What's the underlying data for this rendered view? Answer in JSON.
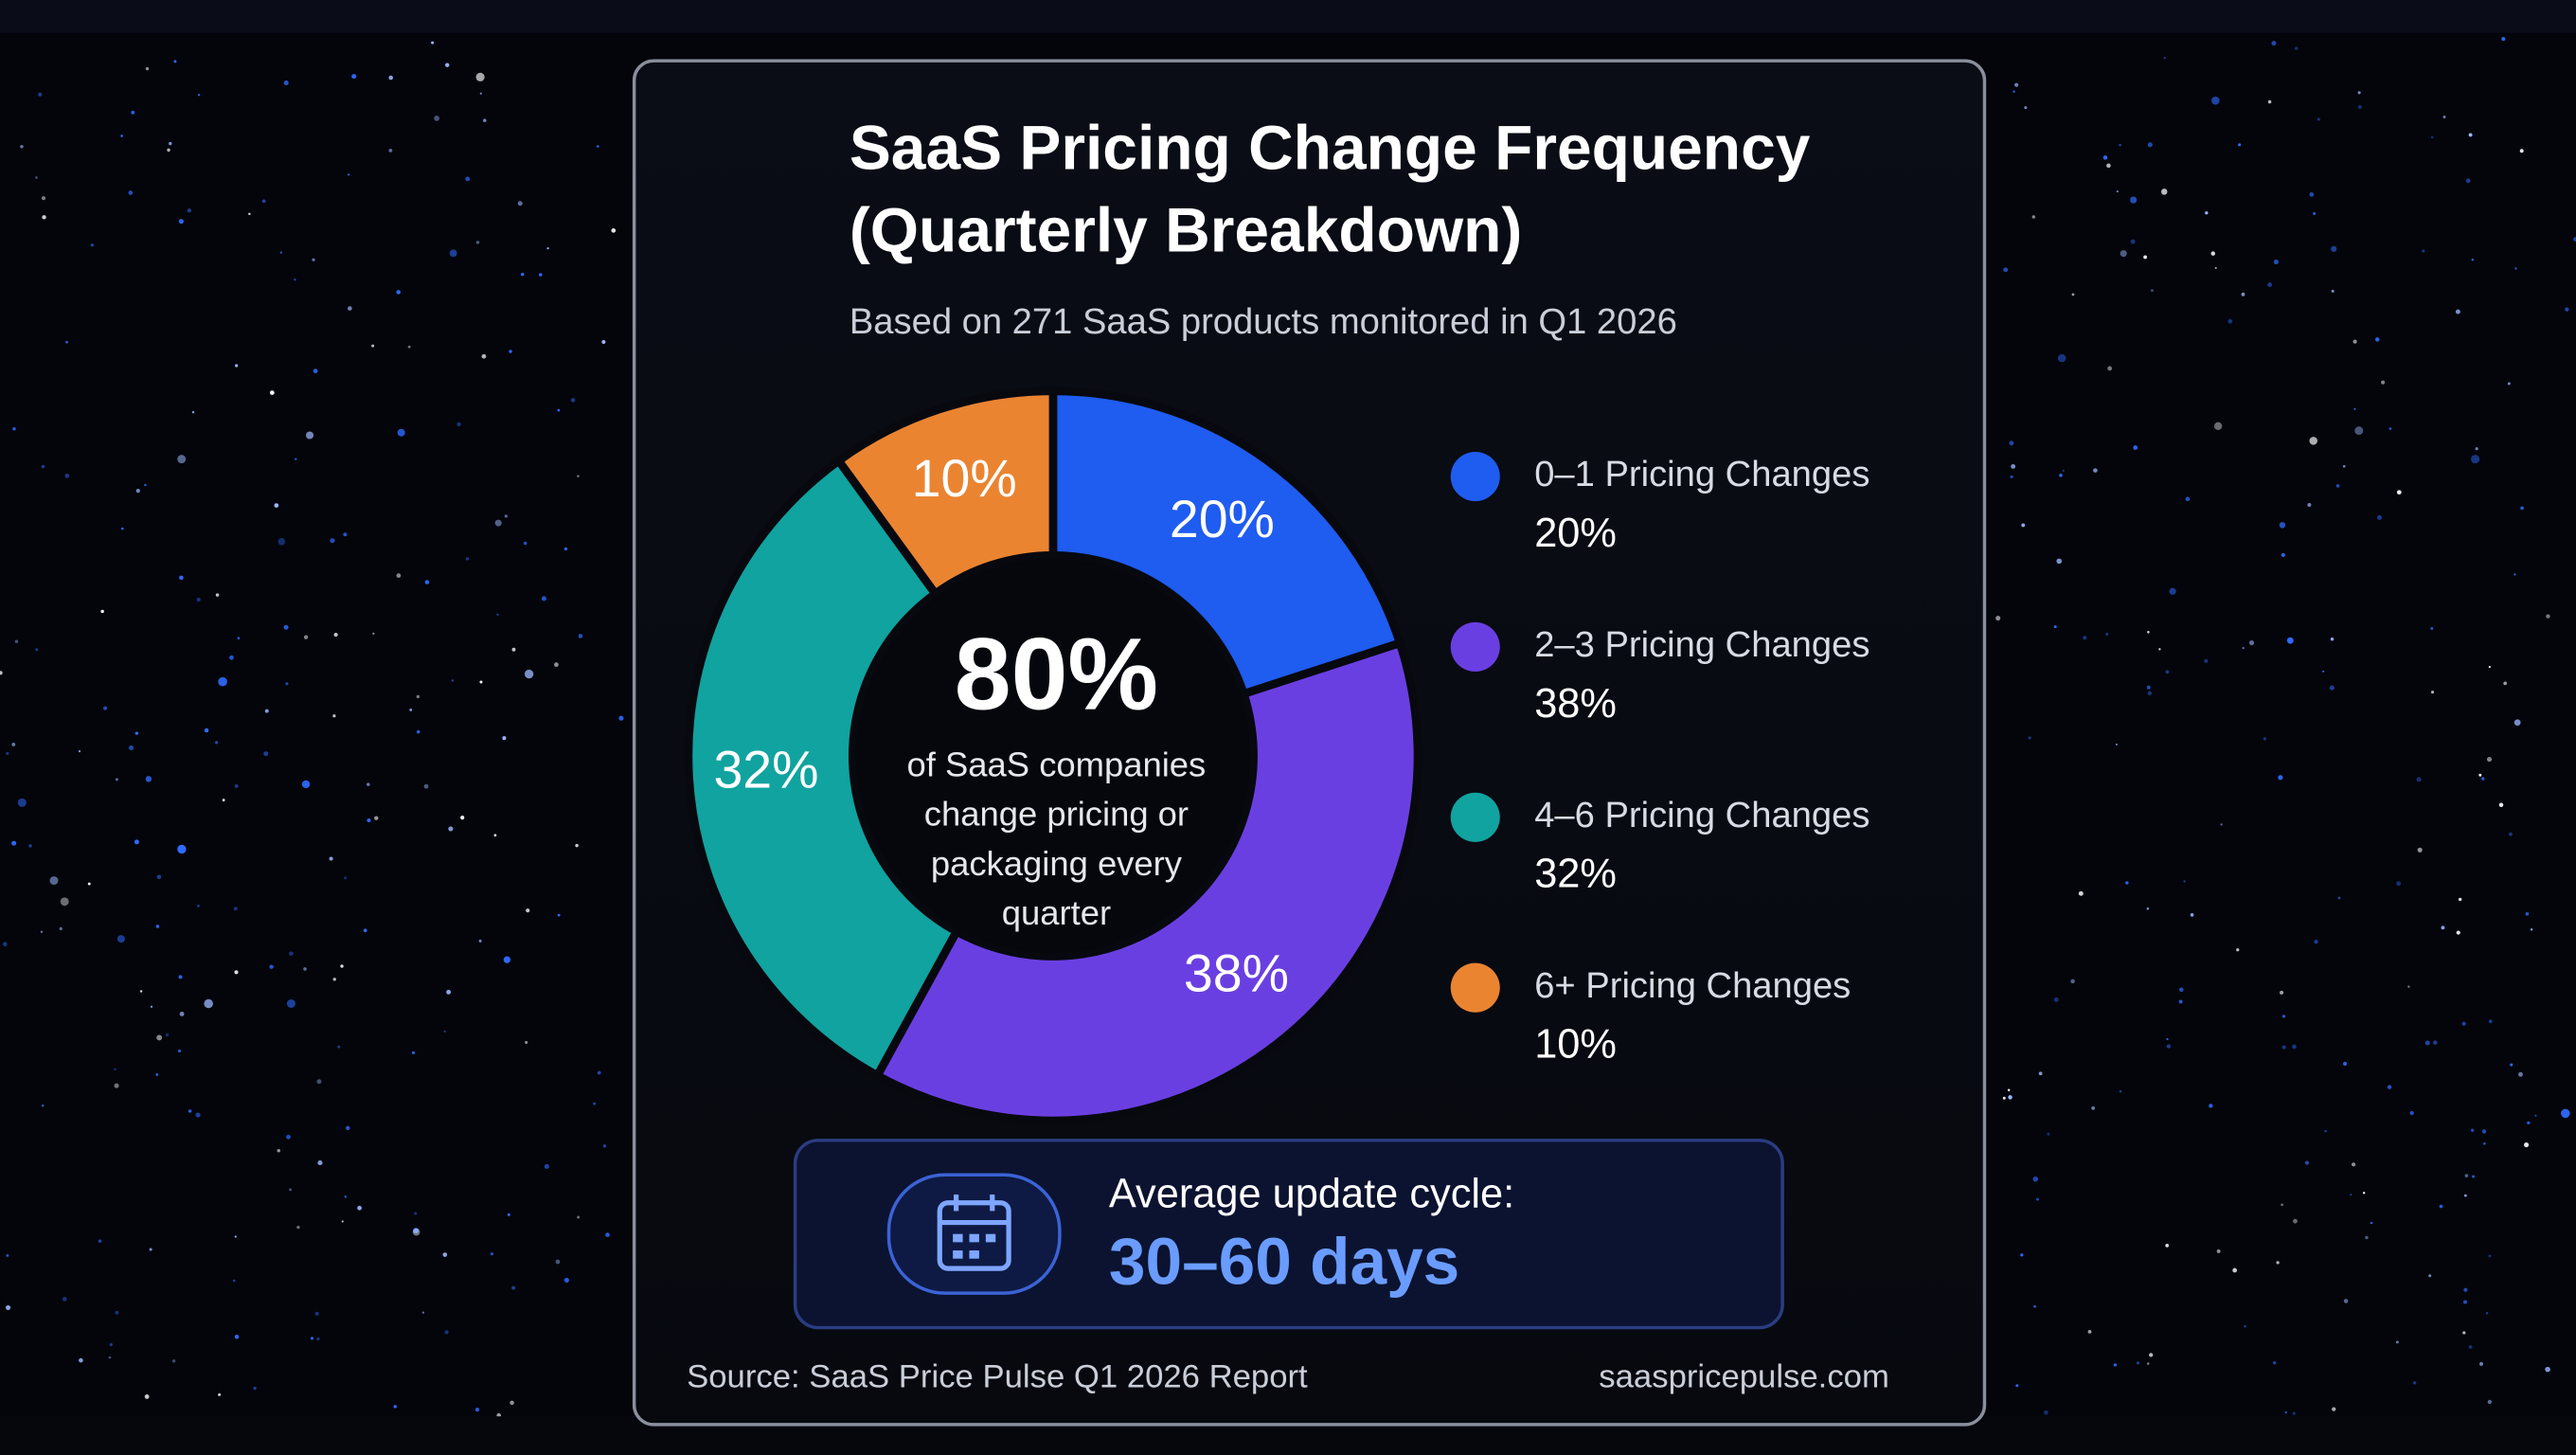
{
  "chart_data": {
    "type": "pie",
    "title_lines": [
      "SaaS Pricing Change Frequency",
      "(Quarterly Breakdown)"
    ],
    "subtitle": "Based on 271 SaaS products monitored in Q1 2026",
    "categories": [
      "0–1 Pricing Changes",
      "2–3 Pricing Changes",
      "4–6 Pricing Changes",
      "6+ Pricing Changes"
    ],
    "values": [
      20,
      38,
      32,
      10
    ],
    "value_labels": [
      "20%",
      "38%",
      "32%",
      "10%"
    ],
    "colors": [
      "#1f5cf0",
      "#6a3fe2",
      "#11a39f",
      "#ea8431"
    ],
    "donut": true,
    "center_value": {
      "value": 80,
      "label": "80%"
    },
    "center_text_lines": [
      "of SaaS companies",
      "change pricing or",
      "packaging every",
      "quarter"
    ],
    "callout": {
      "label": "Average update cycle:",
      "value": "30–60 days"
    },
    "source": "Source: SaaS Price Pulse Q1 2026 Report",
    "website": "saaspricepulse.com"
  }
}
